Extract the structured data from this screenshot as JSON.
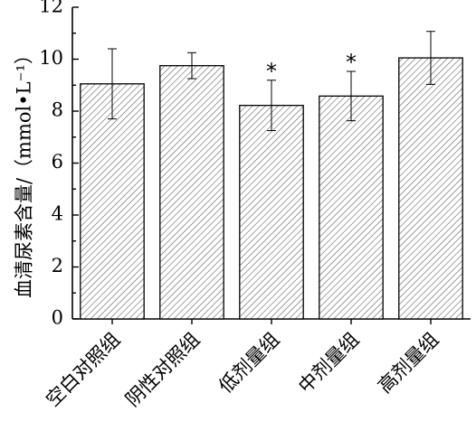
{
  "chart_data": {
    "type": "bar",
    "ylabel": "血清尿素含量/（mmol•L⁻¹）",
    "xlabel": "",
    "title": "",
    "ylim": [
      0,
      12
    ],
    "yticks": [
      0,
      2,
      4,
      6,
      8,
      10,
      12
    ],
    "categories": [
      "空白对照组",
      "阴性对照组",
      "低剂量组",
      "中剂量组",
      "高剂量组"
    ],
    "values": [
      9.05,
      9.75,
      8.22,
      8.58,
      10.05
    ],
    "error": [
      1.35,
      0.5,
      0.97,
      0.95,
      1.02
    ],
    "significance": [
      "",
      "",
      "*",
      "*",
      ""
    ],
    "fill_pattern": "diagonal-hatch",
    "grid": false,
    "legend": "none"
  }
}
